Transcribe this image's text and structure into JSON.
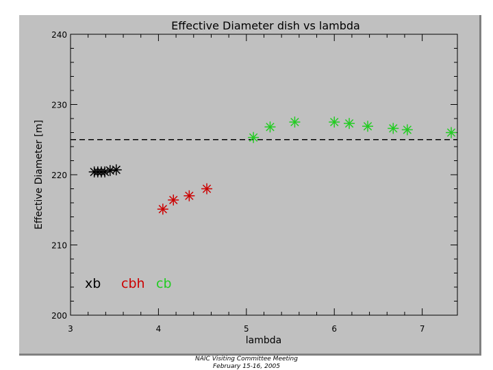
{
  "chart_data": {
    "type": "scatter",
    "title": "Effective Diameter dish vs lambda",
    "xlabel": "lambda",
    "ylabel": "Effective Diameter [m]",
    "xlim": [
      3,
      7.4
    ],
    "ylim": [
      200,
      240
    ],
    "xticks": [
      3,
      4,
      5,
      6,
      7
    ],
    "yticks": [
      200,
      210,
      220,
      230,
      240
    ],
    "reference_line": {
      "y": 225,
      "style": "dashed"
    },
    "series": [
      {
        "name": "xb",
        "color": "#000000",
        "x": [
          3.27,
          3.31,
          3.35,
          3.39,
          3.45,
          3.52
        ],
        "y": [
          220.4,
          220.4,
          220.4,
          220.4,
          220.6,
          220.7
        ]
      },
      {
        "name": "cbh",
        "color": "#cc0000",
        "x": [
          4.05,
          4.17,
          4.35,
          4.55
        ],
        "y": [
          215.1,
          216.4,
          217.0,
          218.0
        ]
      },
      {
        "name": "cb",
        "color": "#22cc22",
        "x": [
          5.08,
          5.27,
          5.55,
          6.0,
          6.17,
          6.38,
          6.67,
          6.83,
          7.33
        ],
        "y": [
          225.3,
          226.8,
          227.5,
          227.5,
          227.3,
          226.9,
          226.6,
          226.4,
          226.0
        ]
      }
    ]
  },
  "footer": {
    "line1": "NAIC Visiting Committee Meeting",
    "line2": "February 15-16, 2005"
  }
}
